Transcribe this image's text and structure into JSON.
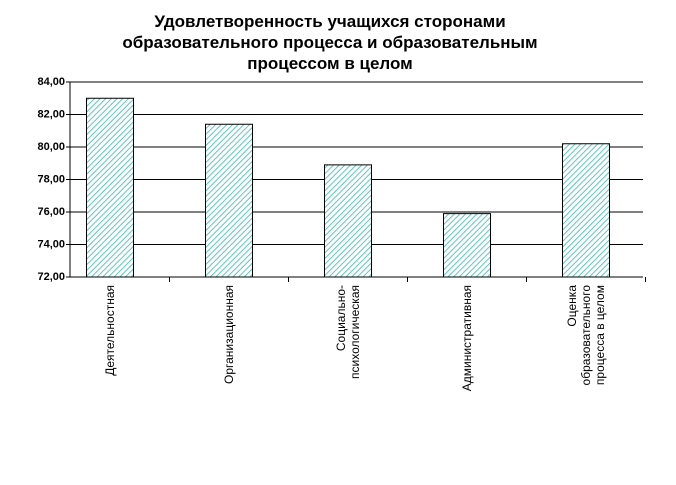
{
  "chart_data": {
    "type": "bar",
    "title": "Удовлетворенность учащихся сторонами\nобразовательного процесса и образовательным\nпроцессом в целом",
    "categories": [
      "Деятельностная",
      "Организационная",
      "Социально-\nпсихологическая",
      "Административная",
      "Оценка\nобразовательного\nпроцесса в целом"
    ],
    "values": [
      83.0,
      81.4,
      78.9,
      75.9,
      80.2
    ],
    "color": "#5cc8c0",
    "ylim": [
      72,
      84
    ],
    "yticks": [
      {
        "value": 72,
        "label": "72,00"
      },
      {
        "value": 74,
        "label": "74,00"
      },
      {
        "value": 76,
        "label": "76,00"
      },
      {
        "value": 78,
        "label": "78,00"
      },
      {
        "value": 80,
        "label": "80,00"
      },
      {
        "value": 82,
        "label": "82,00"
      },
      {
        "value": 84,
        "label": "84,00"
      }
    ],
    "grid": true
  }
}
